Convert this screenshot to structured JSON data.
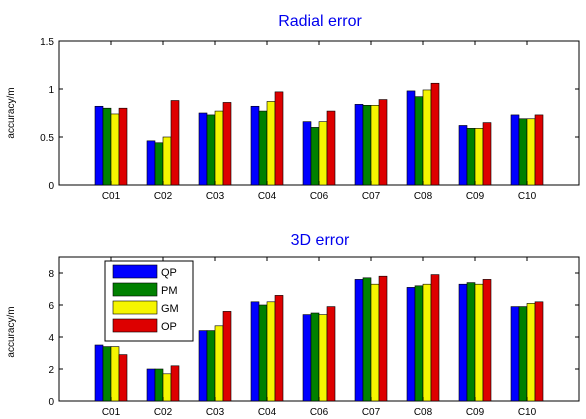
{
  "chart_data": [
    {
      "type": "bar",
      "title": "Radial error",
      "xlabel": "",
      "ylabel": "accuracy/m",
      "ylim": [
        0,
        1.5
      ],
      "yticks": [
        "0",
        "0.5",
        "1",
        "1.5"
      ],
      "categories": [
        "C01",
        "C02",
        "C03",
        "C04",
        "C06",
        "C07",
        "C08",
        "C09",
        "C10"
      ],
      "series": [
        {
          "name": "QP",
          "color": "#0000ff",
          "values": [
            0.82,
            0.46,
            0.75,
            0.82,
            0.66,
            0.84,
            0.98,
            0.62,
            0.73
          ]
        },
        {
          "name": "PM",
          "color": "#008000",
          "values": [
            0.8,
            0.44,
            0.73,
            0.77,
            0.6,
            0.83,
            0.92,
            0.59,
            0.69
          ]
        },
        {
          "name": "GM",
          "color": "#f5f500",
          "values": [
            0.74,
            0.5,
            0.77,
            0.87,
            0.66,
            0.83,
            0.99,
            0.59,
            0.69
          ]
        },
        {
          "name": "OP",
          "color": "#dd0000",
          "values": [
            0.8,
            0.88,
            0.86,
            0.97,
            0.77,
            0.89,
            1.06,
            0.65,
            0.73
          ]
        }
      ],
      "grid": false,
      "legend": "none"
    },
    {
      "type": "bar",
      "title": "3D error",
      "xlabel": "",
      "ylabel": "accuracy/m",
      "ylim": [
        0,
        9
      ],
      "yticks": [
        "0",
        "2",
        "4",
        "6",
        "8"
      ],
      "categories": [
        "C01",
        "C02",
        "C03",
        "C04",
        "C06",
        "C07",
        "C08",
        "C09",
        "C10"
      ],
      "series": [
        {
          "name": "QP",
          "color": "#0000ff",
          "values": [
            3.5,
            2.0,
            4.4,
            6.2,
            5.4,
            7.6,
            7.1,
            7.3,
            5.9
          ]
        },
        {
          "name": "PM",
          "color": "#008000",
          "values": [
            3.4,
            2.0,
            4.4,
            6.0,
            5.5,
            7.7,
            7.2,
            7.4,
            5.9
          ]
        },
        {
          "name": "GM",
          "color": "#f5f500",
          "values": [
            3.4,
            1.7,
            4.7,
            6.2,
            5.4,
            7.3,
            7.3,
            7.3,
            6.1
          ]
        },
        {
          "name": "OP",
          "color": "#dd0000",
          "values": [
            2.9,
            2.2,
            5.6,
            6.6,
            5.9,
            7.8,
            7.9,
            7.6,
            6.2
          ]
        }
      ],
      "grid": false,
      "legend": "top-left"
    }
  ]
}
